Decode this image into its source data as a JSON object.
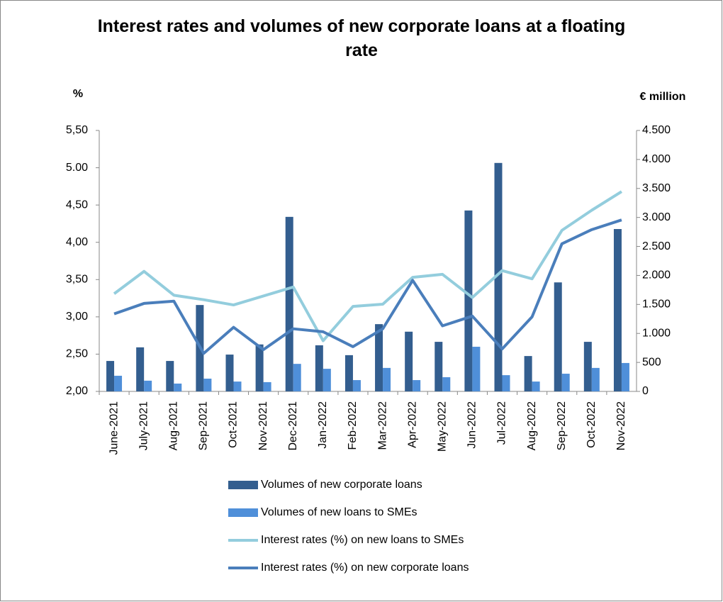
{
  "chart_data": {
    "type": "combo",
    "title": "Interest rates and volumes of new corporate loans at a floating rate",
    "y_label": "%",
    "y2_label": "€ million",
    "categories": [
      "June-2021",
      "July-2021",
      "Aug-2021",
      "Sep-2021",
      "Oct-2021",
      "Nov-2021",
      "Dec-2021",
      "Jan-2022",
      "Feb-2022",
      "Mar-2022",
      "Apr-2022",
      "May-2022",
      "Jun-2022",
      "Jul-2022",
      "Aug-2022",
      "Sep-2022",
      "Oct-2022",
      "Nov-2022"
    ],
    "ylim": [
      2.0,
      5.5
    ],
    "yticks": [
      {
        "value": 2.0,
        "label": "2,00"
      },
      {
        "value": 2.5,
        "label": "2,50"
      },
      {
        "value": 3.0,
        "label": "3,00"
      },
      {
        "value": 3.5,
        "label": "3,50"
      },
      {
        "value": 4.0,
        "label": "4,00"
      },
      {
        "value": 4.5,
        "label": "4,50"
      },
      {
        "value": 5.0,
        "label": "5.00"
      },
      {
        "value": 5.5,
        "label": "5,50"
      }
    ],
    "y2lim": [
      0,
      4500
    ],
    "y2ticks": [
      0,
      {
        "value": 500,
        "label": "500"
      },
      {
        "value": 1000,
        "label": "1.000"
      },
      {
        "value": 1500,
        "label": "1.500"
      },
      {
        "value": 2000,
        "label": "2.000"
      },
      {
        "value": 2500,
        "label": "2.500"
      },
      {
        "value": 3000,
        "label": "3.000"
      },
      {
        "value": 3500,
        "label": "3.500"
      },
      {
        "value": 4000,
        "label": "4.000"
      },
      {
        "value": 4500,
        "label": "4.500"
      }
    ],
    "grid": false,
    "legend": "bottom",
    "series": [
      {
        "name": "Volumes of new corporate loans",
        "type": "bar",
        "axis": "y2",
        "color": "#335e8f",
        "values": [
          525,
          760,
          525,
          1490,
          635,
          810,
          3010,
          795,
          625,
          1160,
          1030,
          855,
          3120,
          3940,
          610,
          1880,
          855,
          2800
        ]
      },
      {
        "name": "Volumes of new loans to SMEs",
        "type": "bar",
        "axis": "y2",
        "color": "#4f8fd9",
        "values": [
          270,
          185,
          135,
          220,
          170,
          160,
          475,
          390,
          195,
          405,
          195,
          245,
          770,
          280,
          170,
          305,
          405,
          490
        ]
      },
      {
        "name": "Interest rates (%) on new loans to SMEs",
        "type": "line",
        "color": "#93cddd",
        "values": [
          3.31,
          3.61,
          3.29,
          3.23,
          3.16,
          3.28,
          3.4,
          2.68,
          3.14,
          3.17,
          3.53,
          3.57,
          3.26,
          3.62,
          3.51,
          4.16,
          4.43,
          4.68
        ]
      },
      {
        "name": "Interest rates (%) on new corporate loans",
        "type": "line",
        "color": "#4a7ebb",
        "values": [
          3.04,
          3.18,
          3.21,
          2.51,
          2.86,
          2.56,
          2.84,
          2.8,
          2.6,
          2.84,
          3.49,
          2.88,
          3.01,
          2.57,
          3.0,
          3.98,
          4.17,
          4.3
        ]
      }
    ]
  }
}
